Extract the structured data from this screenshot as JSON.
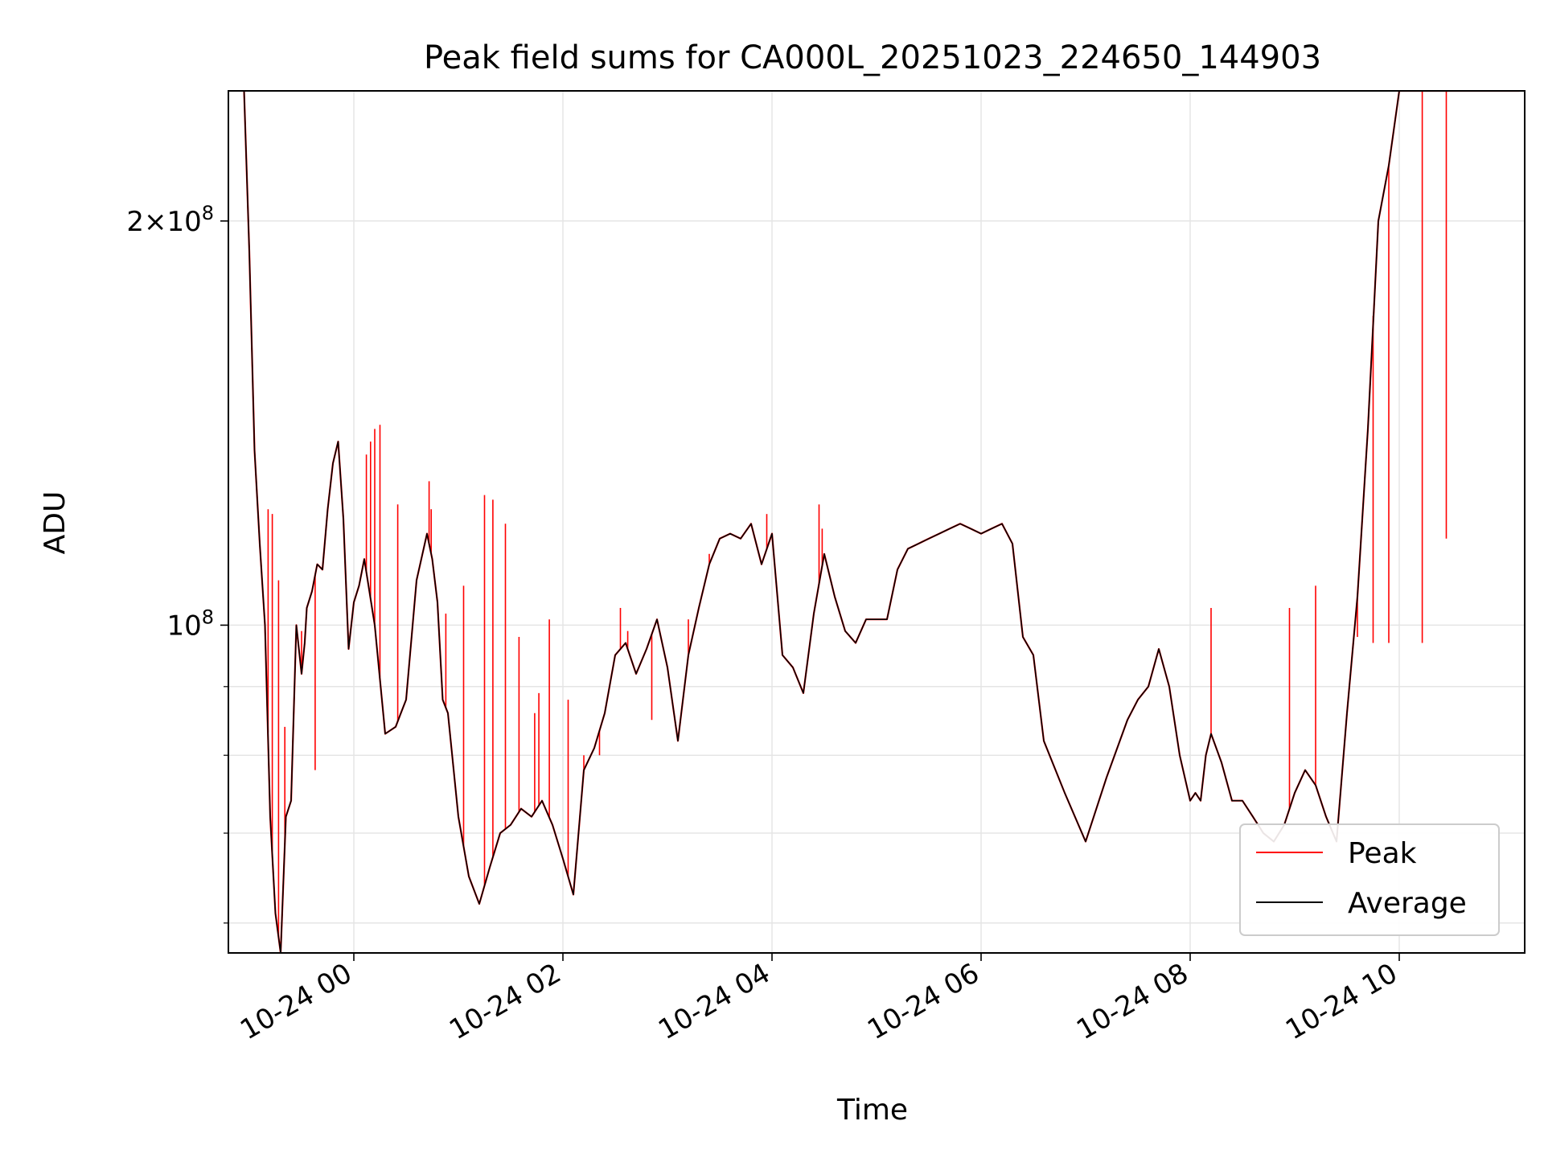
{
  "chart_data": {
    "type": "line",
    "title": "Peak field sums for CA000L_20251023_224650_144903",
    "xlabel": "Time",
    "ylabel": "ADU",
    "yscale": "log",
    "ylim": [
      57000000,
      250000000
    ],
    "xlim_hours": [
      -1.2,
      11.2
    ],
    "x_unit": "hours since 2025-10-24 00:00",
    "grid": true,
    "legend_position": "lower-right",
    "xticks": [
      {
        "value": 0,
        "label": "10-24 00"
      },
      {
        "value": 2,
        "label": "10-24 02"
      },
      {
        "value": 4,
        "label": "10-24 04"
      },
      {
        "value": 6,
        "label": "10-24 06"
      },
      {
        "value": 8,
        "label": "10-24 08"
      },
      {
        "value": 10,
        "label": "10-24 10"
      }
    ],
    "yticks_major": [
      {
        "value": 100000000,
        "base": "10",
        "exp": "8"
      },
      {
        "value": 200000000,
        "mantissa": "2",
        "base": "10",
        "exp": "8"
      }
    ],
    "yticks_minor": [
      60000000,
      70000000,
      80000000,
      90000000
    ],
    "colors": {
      "peak": "#ff0000",
      "average": "#000000",
      "grid": "#e5e5e5"
    },
    "series": [
      {
        "name": "Average",
        "x": [
          -1.05,
          -1.0,
          -0.95,
          -0.9,
          -0.85,
          -0.8,
          -0.75,
          -0.7,
          -0.65,
          -0.6,
          -0.55,
          -0.5,
          -0.47,
          -0.45,
          -0.4,
          -0.35,
          -0.3,
          -0.25,
          -0.2,
          -0.15,
          -0.1,
          -0.05,
          0.0,
          0.05,
          0.1,
          0.2,
          0.3,
          0.4,
          0.45,
          0.5,
          0.6,
          0.7,
          0.75,
          0.8,
          0.85,
          0.9,
          1.0,
          1.1,
          1.2,
          1.3,
          1.4,
          1.5,
          1.6,
          1.7,
          1.8,
          1.9,
          2.0,
          2.1,
          2.2,
          2.3,
          2.4,
          2.5,
          2.6,
          2.7,
          2.8,
          2.9,
          3.0,
          3.1,
          3.2,
          3.3,
          3.4,
          3.5,
          3.6,
          3.7,
          3.8,
          3.9,
          4.0,
          4.1,
          4.2,
          4.3,
          4.4,
          4.5,
          4.6,
          4.7,
          4.8,
          4.9,
          5.0,
          5.1,
          5.2,
          5.3,
          5.4,
          5.5,
          5.6,
          5.7,
          5.8,
          5.9,
          6.0,
          6.1,
          6.2,
          6.3,
          6.4,
          6.5,
          6.6,
          6.8,
          7.0,
          7.2,
          7.4,
          7.5,
          7.6,
          7.7,
          7.8,
          7.9,
          8.0,
          8.05,
          8.1,
          8.15,
          8.2,
          8.3,
          8.4,
          8.5,
          8.6,
          8.7,
          8.8,
          8.9,
          9.0,
          9.1,
          9.2,
          9.3,
          9.4,
          9.5,
          9.6,
          9.7,
          9.8,
          9.9,
          10.0,
          10.1,
          10.2,
          10.3,
          10.4,
          10.5,
          10.6,
          10.7,
          10.8,
          10.9,
          11.0,
          11.05,
          11.1,
          11.15
        ],
        "values": [
          250000000,
          190000000,
          135000000,
          115000000,
          100000000,
          72000000,
          61000000,
          57000000,
          72000000,
          74000000,
          100000000,
          92000000,
          97000000,
          103000000,
          106000000,
          111000000,
          110000000,
          122000000,
          132000000,
          137000000,
          120000000,
          96000000,
          104000000,
          107000000,
          112000000,
          100000000,
          83000000,
          84000000,
          86000000,
          88000000,
          108000000,
          117000000,
          112000000,
          104000000,
          88000000,
          86000000,
          72000000,
          65000000,
          62000000,
          66000000,
          70000000,
          71000000,
          73000000,
          72000000,
          74000000,
          71000000,
          67000000,
          63000000,
          78000000,
          81000000,
          86000000,
          95000000,
          97000000,
          92000000,
          96000000,
          101000000,
          93000000,
          82000000,
          95000000,
          103000000,
          111000000,
          116000000,
          117000000,
          116000000,
          119000000,
          111000000,
          117000000,
          95000000,
          93000000,
          89000000,
          102000000,
          113000000,
          105000000,
          99000000,
          97000000,
          101000000,
          101000000,
          101000000,
          110000000,
          114000000,
          115000000,
          116000000,
          117000000,
          118000000,
          119000000,
          118000000,
          117000000,
          118000000,
          119000000,
          115000000,
          98000000,
          95000000,
          82000000,
          75000000,
          69000000,
          77000000,
          85000000,
          88000000,
          90000000,
          96000000,
          90000000,
          80000000,
          74000000,
          75000000,
          74000000,
          80000000,
          83000000,
          79000000,
          74000000,
          74000000,
          72000000,
          70000000,
          69000000,
          71000000,
          75000000,
          78000000,
          76000000,
          72000000,
          69000000,
          86000000,
          105000000,
          140000000,
          200000000,
          220000000,
          250000000,
          250000000,
          250000000,
          250000000,
          250000000,
          250000000,
          250000000,
          250000000,
          250000000,
          250000000,
          250000000,
          250000000,
          250000000,
          250000000
        ]
      },
      {
        "name": "Peak",
        "spikes": [
          {
            "x": -0.82,
            "value": 122000000
          },
          {
            "x": -0.78,
            "value": 121000000
          },
          {
            "x": -0.72,
            "value": 108000000
          },
          {
            "x": -0.66,
            "value": 84000000
          },
          {
            "x": -0.5,
            "value": 99000000
          },
          {
            "x": -0.37,
            "value": 78000000
          },
          {
            "x": -0.29,
            "value": 113000000
          },
          {
            "x": 0.12,
            "value": 134000000
          },
          {
            "x": 0.16,
            "value": 137000000
          },
          {
            "x": 0.2,
            "value": 140000000
          },
          {
            "x": 0.25,
            "value": 141000000
          },
          {
            "x": 0.42,
            "value": 123000000
          },
          {
            "x": 0.72,
            "value": 128000000
          },
          {
            "x": 0.74,
            "value": 122000000
          },
          {
            "x": 0.88,
            "value": 102000000
          },
          {
            "x": 1.05,
            "value": 107000000
          },
          {
            "x": 1.25,
            "value": 125000000
          },
          {
            "x": 1.33,
            "value": 124000000
          },
          {
            "x": 1.45,
            "value": 119000000
          },
          {
            "x": 1.58,
            "value": 98000000
          },
          {
            "x": 1.73,
            "value": 86000000
          },
          {
            "x": 1.77,
            "value": 89000000
          },
          {
            "x": 1.87,
            "value": 101000000
          },
          {
            "x": 2.05,
            "value": 88000000
          },
          {
            "x": 2.2,
            "value": 80000000
          },
          {
            "x": 2.35,
            "value": 80000000
          },
          {
            "x": 2.55,
            "value": 103000000
          },
          {
            "x": 2.62,
            "value": 99000000
          },
          {
            "x": 2.85,
            "value": 85000000
          },
          {
            "x": 3.2,
            "value": 101000000
          },
          {
            "x": 3.4,
            "value": 113000000
          },
          {
            "x": 3.95,
            "value": 121000000
          },
          {
            "x": 4.45,
            "value": 123000000
          },
          {
            "x": 4.48,
            "value": 118000000
          },
          {
            "x": 8.2,
            "value": 103000000
          },
          {
            "x": 8.95,
            "value": 103000000
          },
          {
            "x": 9.2,
            "value": 107000000
          },
          {
            "x": 9.6,
            "value": 98000000
          },
          {
            "x": 9.75,
            "value": 97000000
          },
          {
            "x": 9.9,
            "value": 97000000
          },
          {
            "x": 10.22,
            "value": 97000000
          },
          {
            "x": 10.45,
            "value": 116000000
          }
        ]
      }
    ]
  }
}
